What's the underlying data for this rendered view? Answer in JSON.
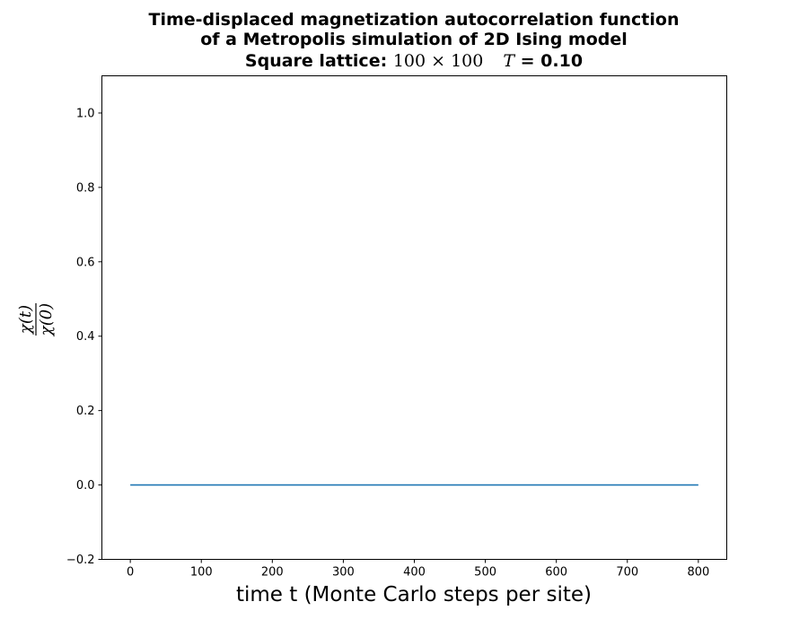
{
  "chart_data": {
    "type": "line",
    "title_lines": [
      "Time-displaced magnetization autocorrelation function",
      "of a Metropolis simulation of 2D Ising model"
    ],
    "title_line3": {
      "prefix": "Square lattice: ",
      "lattice": "100 × 100",
      "temp_symbol": "T",
      "temp_value": " = 0.10"
    },
    "xlabel": "time t (Monte Carlo steps per site)",
    "ylabel": {
      "numerator": "χ(t)",
      "denominator": "χ(0)"
    },
    "xlim": [
      -40,
      840
    ],
    "ylim": [
      -0.2,
      1.1
    ],
    "xticks": [
      0,
      100,
      200,
      300,
      400,
      500,
      600,
      700,
      800
    ],
    "yticks": [
      -0.2,
      0.0,
      0.2,
      0.4,
      0.6,
      0.8,
      1.0
    ],
    "ytick_labels": [
      "−0.2",
      "0.0",
      "0.2",
      "0.4",
      "0.6",
      "0.8",
      "1.0"
    ],
    "grid": false,
    "series": [
      {
        "color": "#1f77b4",
        "x": [
          0,
          800
        ],
        "y": [
          0.0,
          0.0
        ]
      }
    ]
  }
}
